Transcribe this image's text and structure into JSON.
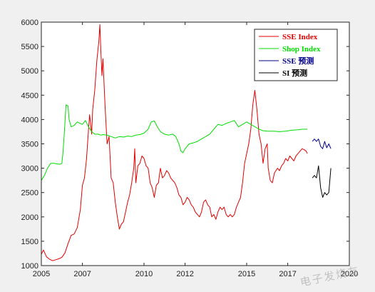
{
  "chart_data": {
    "type": "line",
    "xlim": [
      2005,
      2020
    ],
    "ylim": [
      1000,
      6000
    ],
    "xticks": [
      2005,
      2007,
      2010,
      2012,
      2015,
      2017,
      2020
    ],
    "yticks": [
      1000,
      1500,
      2000,
      2500,
      3000,
      3500,
      4000,
      4500,
      5000,
      5500,
      6000
    ],
    "legend_position": "top-right",
    "grid": false,
    "series": [
      {
        "name": "SSE Index",
        "color": "#e00000",
        "points": [
          [
            2005.0,
            1230
          ],
          [
            2005.1,
            1320
          ],
          [
            2005.25,
            1180
          ],
          [
            2005.4,
            1130
          ],
          [
            2005.55,
            1100
          ],
          [
            2005.7,
            1120
          ],
          [
            2005.85,
            1140
          ],
          [
            2006.0,
            1170
          ],
          [
            2006.15,
            1260
          ],
          [
            2006.3,
            1450
          ],
          [
            2006.45,
            1620
          ],
          [
            2006.6,
            1650
          ],
          [
            2006.75,
            1780
          ],
          [
            2006.9,
            2150
          ],
          [
            2007.0,
            2650
          ],
          [
            2007.1,
            2800
          ],
          [
            2007.2,
            3200
          ],
          [
            2007.3,
            3800
          ],
          [
            2007.35,
            4100
          ],
          [
            2007.45,
            3700
          ],
          [
            2007.5,
            4200
          ],
          [
            2007.6,
            4600
          ],
          [
            2007.7,
            5200
          ],
          [
            2007.8,
            5600
          ],
          [
            2007.85,
            5950
          ],
          [
            2007.9,
            5400
          ],
          [
            2007.95,
            4900
          ],
          [
            2008.0,
            5250
          ],
          [
            2008.1,
            4300
          ],
          [
            2008.2,
            3500
          ],
          [
            2008.3,
            3650
          ],
          [
            2008.4,
            2800
          ],
          [
            2008.5,
            2700
          ],
          [
            2008.6,
            2300
          ],
          [
            2008.7,
            2000
          ],
          [
            2008.8,
            1750
          ],
          [
            2008.9,
            1850
          ],
          [
            2009.0,
            1900
          ],
          [
            2009.1,
            2100
          ],
          [
            2009.2,
            2300
          ],
          [
            2009.3,
            2450
          ],
          [
            2009.4,
            2700
          ],
          [
            2009.5,
            3000
          ],
          [
            2009.55,
            3400
          ],
          [
            2009.6,
            2700
          ],
          [
            2009.7,
            3050
          ],
          [
            2009.8,
            3100
          ],
          [
            2009.9,
            3250
          ],
          [
            2010.0,
            3200
          ],
          [
            2010.1,
            3050
          ],
          [
            2010.2,
            3000
          ],
          [
            2010.3,
            2700
          ],
          [
            2010.4,
            2600
          ],
          [
            2010.5,
            2400
          ],
          [
            2010.6,
            2650
          ],
          [
            2010.7,
            2700
          ],
          [
            2010.8,
            3000
          ],
          [
            2010.9,
            2800
          ],
          [
            2011.0,
            2850
          ],
          [
            2011.1,
            2950
          ],
          [
            2011.2,
            2900
          ],
          [
            2011.3,
            2800
          ],
          [
            2011.4,
            2750
          ],
          [
            2011.5,
            2700
          ],
          [
            2011.6,
            2600
          ],
          [
            2011.7,
            2450
          ],
          [
            2011.8,
            2400
          ],
          [
            2011.9,
            2250
          ],
          [
            2012.0,
            2300
          ],
          [
            2012.1,
            2400
          ],
          [
            2012.2,
            2350
          ],
          [
            2012.3,
            2250
          ],
          [
            2012.4,
            2200
          ],
          [
            2012.5,
            2100
          ],
          [
            2012.6,
            2050
          ],
          [
            2012.7,
            2000
          ],
          [
            2012.8,
            2100
          ],
          [
            2012.9,
            2300
          ],
          [
            2013.0,
            2350
          ],
          [
            2013.1,
            2250
          ],
          [
            2013.2,
            2200
          ],
          [
            2013.3,
            2000
          ],
          [
            2013.4,
            2050
          ],
          [
            2013.5,
            1950
          ],
          [
            2013.6,
            2100
          ],
          [
            2013.7,
            2200
          ],
          [
            2013.8,
            2150
          ],
          [
            2013.9,
            2200
          ],
          [
            2014.0,
            2050
          ],
          [
            2014.1,
            2000
          ],
          [
            2014.2,
            2050
          ],
          [
            2014.3,
            2000
          ],
          [
            2014.4,
            2050
          ],
          [
            2014.5,
            2200
          ],
          [
            2014.6,
            2300
          ],
          [
            2014.7,
            2400
          ],
          [
            2014.8,
            2700
          ],
          [
            2014.9,
            3100
          ],
          [
            2015.0,
            3300
          ],
          [
            2015.1,
            3500
          ],
          [
            2015.2,
            3800
          ],
          [
            2015.3,
            4300
          ],
          [
            2015.4,
            4600
          ],
          [
            2015.5,
            4200
          ],
          [
            2015.6,
            3700
          ],
          [
            2015.7,
            3500
          ],
          [
            2015.8,
            3100
          ],
          [
            2015.9,
            3400
          ],
          [
            2016.0,
            3500
          ],
          [
            2016.05,
            3000
          ],
          [
            2016.15,
            2750
          ],
          [
            2016.25,
            2700
          ],
          [
            2016.35,
            2900
          ],
          [
            2016.5,
            3000
          ],
          [
            2016.6,
            2950
          ],
          [
            2016.7,
            3050
          ],
          [
            2016.8,
            3100
          ],
          [
            2016.9,
            3200
          ],
          [
            2017.0,
            3150
          ],
          [
            2017.1,
            3250
          ],
          [
            2017.2,
            3200
          ],
          [
            2017.3,
            3150
          ],
          [
            2017.4,
            3250
          ],
          [
            2017.5,
            3300
          ],
          [
            2017.6,
            3350
          ],
          [
            2017.7,
            3400
          ],
          [
            2017.8,
            3380
          ],
          [
            2017.9,
            3350
          ],
          [
            2017.95,
            3300
          ]
        ]
      },
      {
        "name": "Shop Index",
        "color": "#00dd00",
        "points": [
          [
            2005.0,
            2750
          ],
          [
            2005.15,
            2850
          ],
          [
            2005.3,
            3000
          ],
          [
            2005.45,
            3100
          ],
          [
            2005.6,
            3100
          ],
          [
            2005.75,
            3090
          ],
          [
            2005.9,
            3080
          ],
          [
            2006.0,
            3100
          ],
          [
            2006.05,
            3300
          ],
          [
            2006.1,
            3600
          ],
          [
            2006.2,
            4300
          ],
          [
            2006.3,
            4280
          ],
          [
            2006.35,
            4000
          ],
          [
            2006.45,
            3850
          ],
          [
            2006.6,
            3880
          ],
          [
            2006.75,
            3950
          ],
          [
            2006.9,
            3920
          ],
          [
            2007.0,
            3900
          ],
          [
            2007.15,
            3980
          ],
          [
            2007.3,
            3850
          ],
          [
            2007.45,
            3750
          ],
          [
            2007.6,
            3700
          ],
          [
            2007.75,
            3700
          ],
          [
            2007.9,
            3680
          ],
          [
            2008.0,
            3690
          ],
          [
            2008.2,
            3680
          ],
          [
            2008.4,
            3650
          ],
          [
            2008.6,
            3620
          ],
          [
            2008.8,
            3650
          ],
          [
            2009.0,
            3640
          ],
          [
            2009.2,
            3660
          ],
          [
            2009.4,
            3650
          ],
          [
            2009.6,
            3680
          ],
          [
            2009.8,
            3690
          ],
          [
            2010.0,
            3720
          ],
          [
            2010.2,
            3800
          ],
          [
            2010.35,
            3950
          ],
          [
            2010.5,
            3970
          ],
          [
            2010.65,
            3850
          ],
          [
            2010.8,
            3750
          ],
          [
            2011.0,
            3700
          ],
          [
            2011.2,
            3680
          ],
          [
            2011.4,
            3700
          ],
          [
            2011.55,
            3650
          ],
          [
            2011.7,
            3500
          ],
          [
            2011.8,
            3350
          ],
          [
            2011.9,
            3320
          ],
          [
            2012.0,
            3400
          ],
          [
            2012.2,
            3500
          ],
          [
            2012.4,
            3520
          ],
          [
            2012.6,
            3550
          ],
          [
            2012.8,
            3600
          ],
          [
            2013.0,
            3650
          ],
          [
            2013.2,
            3700
          ],
          [
            2013.4,
            3800
          ],
          [
            2013.6,
            3900
          ],
          [
            2013.8,
            3880
          ],
          [
            2014.0,
            3920
          ],
          [
            2014.2,
            3950
          ],
          [
            2014.4,
            3980
          ],
          [
            2014.6,
            3850
          ],
          [
            2014.8,
            3900
          ],
          [
            2015.0,
            3950
          ],
          [
            2015.2,
            3900
          ],
          [
            2015.4,
            3850
          ],
          [
            2015.6,
            3800
          ],
          [
            2015.8,
            3770
          ],
          [
            2016.0,
            3760
          ],
          [
            2016.3,
            3760
          ],
          [
            2016.6,
            3750
          ],
          [
            2016.9,
            3760
          ],
          [
            2017.2,
            3780
          ],
          [
            2017.5,
            3790
          ],
          [
            2017.7,
            3800
          ],
          [
            2017.95,
            3800
          ]
        ]
      },
      {
        "name": "SSE 预测",
        "color": "#00008b",
        "points": [
          [
            2018.2,
            3550
          ],
          [
            2018.3,
            3600
          ],
          [
            2018.4,
            3550
          ],
          [
            2018.5,
            3600
          ],
          [
            2018.6,
            3450
          ],
          [
            2018.7,
            3400
          ],
          [
            2018.8,
            3550
          ],
          [
            2018.9,
            3420
          ],
          [
            2019.0,
            3500
          ],
          [
            2019.1,
            3400
          ]
        ]
      },
      {
        "name": "SI 预测",
        "color": "#000000",
        "points": [
          [
            2018.2,
            2800
          ],
          [
            2018.3,
            2850
          ],
          [
            2018.4,
            2800
          ],
          [
            2018.5,
            3050
          ],
          [
            2018.6,
            2600
          ],
          [
            2018.7,
            2400
          ],
          [
            2018.8,
            2500
          ],
          [
            2018.9,
            2450
          ],
          [
            2019.0,
            2500
          ],
          [
            2019.1,
            3000
          ]
        ]
      }
    ]
  },
  "watermark_text": "电子发烧友"
}
